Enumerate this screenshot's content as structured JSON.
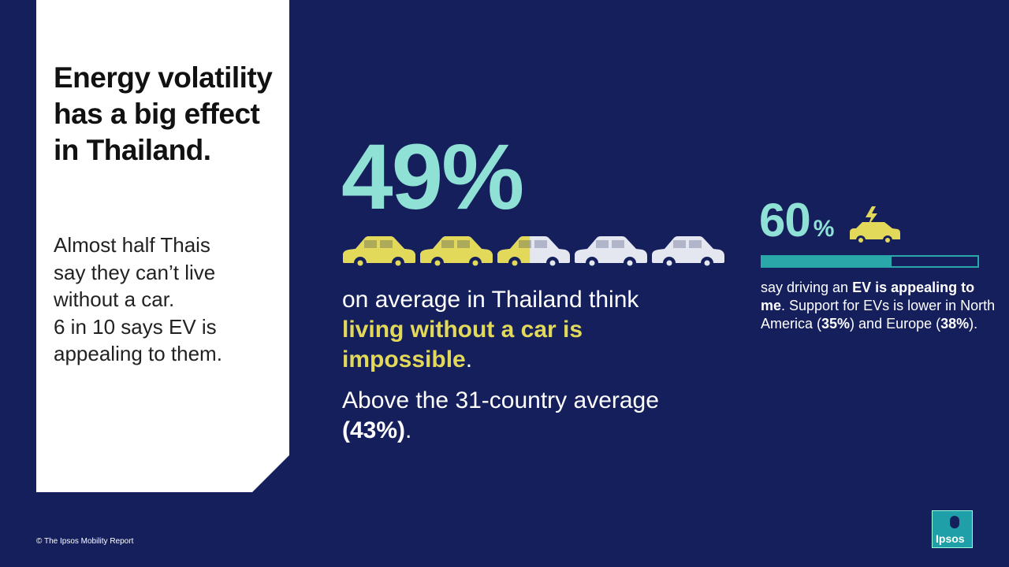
{
  "panel": {
    "title": "Energy volatility has a big effect in Thailand.",
    "body_lines": [
      "Almost half Thais",
      "say they can’t live",
      "without a car.",
      "6 in 10 says EV is",
      "appealing to them."
    ]
  },
  "headline": {
    "value": 49,
    "unit": "%",
    "cars": 5,
    "fill_color": "#e2d95b",
    "empty_color": "#e4e7ef",
    "text_before": "on average in Thailand think",
    "highlight": "living without a car is impossible",
    "text_after": ".",
    "comparison": "Above the 31-country average",
    "comparison_value": "(43%)",
    "comparison_end": "."
  },
  "ev": {
    "value": 60,
    "unit": "%",
    "bar_color": "#2aa7a8",
    "segments": [
      {
        "text": "say driving an ",
        "bold": false
      },
      {
        "text": "EV is appealing to me",
        "bold": true
      },
      {
        "text": ". Support for EVs is lower in North America (",
        "bold": false
      },
      {
        "text": "35%",
        "bold": true
      },
      {
        "text": ") and Europe (",
        "bold": false
      },
      {
        "text": "38%",
        "bold": true
      },
      {
        "text": ").",
        "bold": false
      }
    ]
  },
  "footer": {
    "copyright": "© The Ipsos Mobility Report",
    "logo": "Ipsos"
  }
}
